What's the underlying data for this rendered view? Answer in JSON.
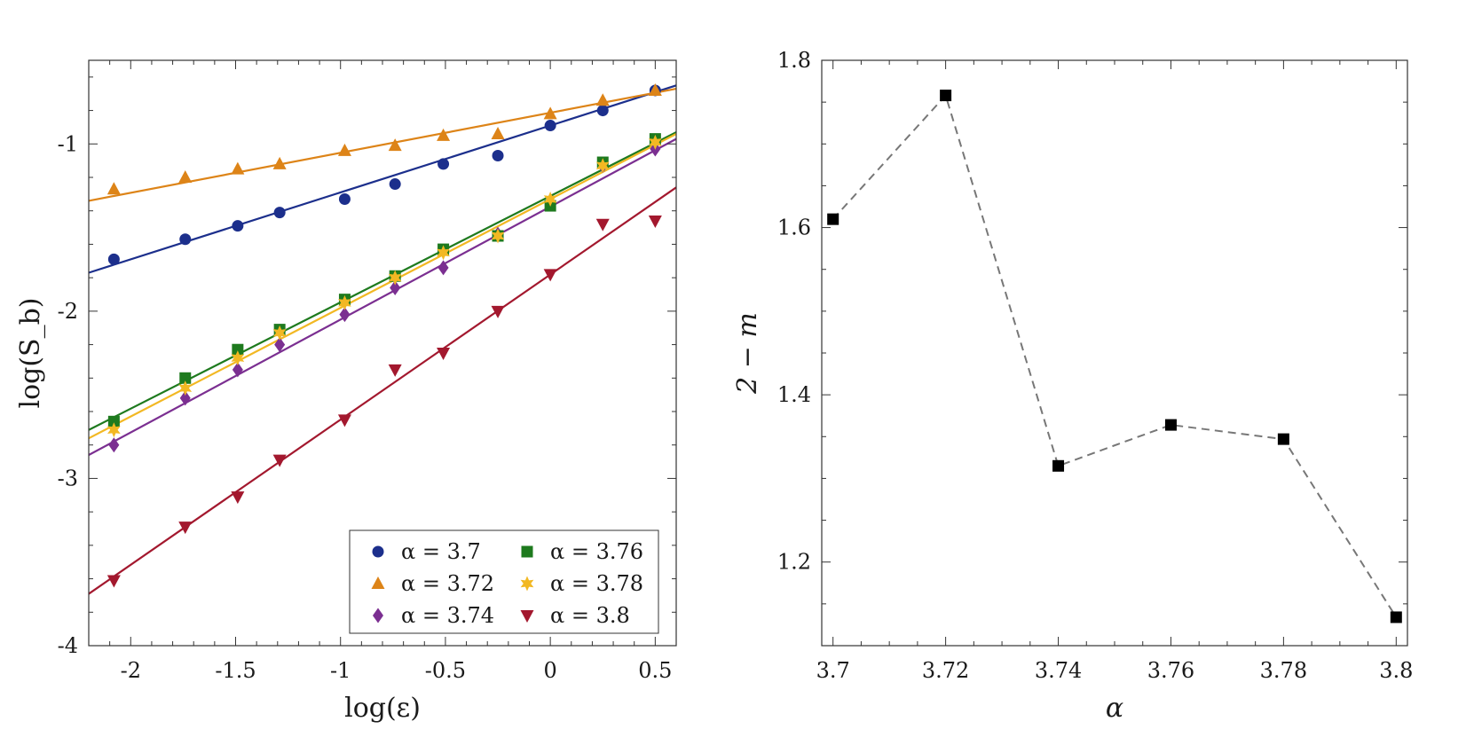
{
  "chart_data": [
    {
      "type": "scatter",
      "xlabel": "log(ε)",
      "ylabel": "log(S_b)",
      "xlim": [
        -2.2,
        0.6
      ],
      "ylim": [
        -4,
        -0.5
      ],
      "xticks": [
        -2,
        -1.5,
        -1,
        -0.5,
        0,
        0.5
      ],
      "xtick_labels": [
        "-2",
        "-1.5",
        "-1",
        "-0.5",
        "0",
        "0.5"
      ],
      "yticks": [
        -4,
        -3,
        -2,
        -1
      ],
      "ytick_labels": [
        "-4",
        "-3",
        "-2",
        "-1"
      ],
      "legend_position": "bottom-right",
      "series": [
        {
          "name": "α = 3.7",
          "color": "#1c2f8c",
          "marker": "circle",
          "x": [
            -2.08,
            -1.74,
            -1.49,
            -1.29,
            -0.98,
            -0.74,
            -0.51,
            -0.25,
            0,
            0.25,
            0.5
          ],
          "y": [
            -1.69,
            -1.57,
            -1.49,
            -1.41,
            -1.33,
            -1.24,
            -1.12,
            -1.07,
            -0.89,
            -0.8,
            -0.68
          ],
          "fit": [
            [
              -2.2,
              -1.77
            ],
            [
              0.6,
              -0.65
            ]
          ]
        },
        {
          "name": "α = 3.72",
          "color": "#dd8418",
          "marker": "triangle-up",
          "x": [
            -2.08,
            -1.74,
            -1.49,
            -1.29,
            -0.98,
            -0.74,
            -0.51,
            -0.25,
            0,
            0.25,
            0.5
          ],
          "y": [
            -1.27,
            -1.2,
            -1.15,
            -1.12,
            -1.04,
            -1.01,
            -0.95,
            -0.94,
            -0.82,
            -0.74,
            -0.68
          ],
          "fit": [
            [
              -2.2,
              -1.34
            ],
            [
              0.6,
              -0.67
            ]
          ]
        },
        {
          "name": "α = 3.74",
          "color": "#7b2f91",
          "marker": "diamond",
          "x": [
            -2.08,
            -1.74,
            -1.49,
            -1.29,
            -0.98,
            -0.74,
            -0.51,
            -0.25,
            0,
            0.25,
            0.5
          ],
          "y": [
            -2.8,
            -2.52,
            -2.35,
            -2.2,
            -2.02,
            -1.86,
            -1.74,
            -1.54,
            -1.36,
            -1.13,
            -1.03
          ],
          "fit": [
            [
              -2.2,
              -2.86
            ],
            [
              0.6,
              -0.97
            ]
          ]
        },
        {
          "name": "α = 3.76",
          "color": "#1e7a1e",
          "marker": "square",
          "x": [
            -2.08,
            -1.74,
            -1.49,
            -1.29,
            -0.98,
            -0.74,
            -0.51,
            -0.25,
            0,
            0.25,
            0.5
          ],
          "y": [
            -2.66,
            -2.4,
            -2.23,
            -2.11,
            -1.93,
            -1.79,
            -1.63,
            -1.55,
            -1.37,
            -1.11,
            -0.97
          ],
          "fit": [
            [
              -2.2,
              -2.71
            ],
            [
              0.6,
              -0.93
            ]
          ]
        },
        {
          "name": "α = 3.78",
          "color": "#f2b823",
          "marker": "star",
          "x": [
            -2.08,
            -1.74,
            -1.49,
            -1.29,
            -0.98,
            -0.74,
            -0.51,
            -0.25,
            0,
            0.25,
            0.5
          ],
          "y": [
            -2.71,
            -2.46,
            -2.28,
            -2.13,
            -1.95,
            -1.8,
            -1.65,
            -1.55,
            -1.33,
            -1.13,
            -0.99
          ],
          "fit": [
            [
              -2.2,
              -2.76
            ],
            [
              0.6,
              -0.94
            ]
          ]
        },
        {
          "name": "α = 3.8",
          "color": "#a3182e",
          "marker": "triangle-down",
          "x": [
            -2.08,
            -1.74,
            -1.49,
            -1.29,
            -0.98,
            -0.74,
            -0.51,
            -0.25,
            0,
            0.25,
            0.5
          ],
          "y": [
            -3.61,
            -3.29,
            -3.11,
            -2.89,
            -2.65,
            -2.35,
            -2.25,
            -2.0,
            -1.78,
            -1.48,
            -1.46
          ],
          "fit": [
            [
              -2.2,
              -3.69
            ],
            [
              0.6,
              -1.26
            ]
          ]
        }
      ]
    },
    {
      "type": "line",
      "xlabel": "α",
      "ylabel": "2 − m",
      "xlim": [
        3.698,
        3.802
      ],
      "ylim": [
        1.1,
        1.8
      ],
      "xticks": [
        3.7,
        3.72,
        3.74,
        3.76,
        3.78,
        3.8
      ],
      "xtick_labels": [
        "3.7",
        "3.72",
        "3.74",
        "3.76",
        "3.78",
        "3.8"
      ],
      "yticks": [
        1.2,
        1.4,
        1.6,
        1.8
      ],
      "ytick_labels": [
        "1.2",
        "1.4",
        "1.6",
        "1.8"
      ],
      "line_style": "dashed",
      "line_color": "#777777",
      "marker": "square",
      "marker_color": "#000000",
      "x": [
        3.7,
        3.72,
        3.74,
        3.76,
        3.78,
        3.8
      ],
      "y": [
        1.61,
        1.758,
        1.315,
        1.364,
        1.347,
        1.134
      ]
    }
  ]
}
